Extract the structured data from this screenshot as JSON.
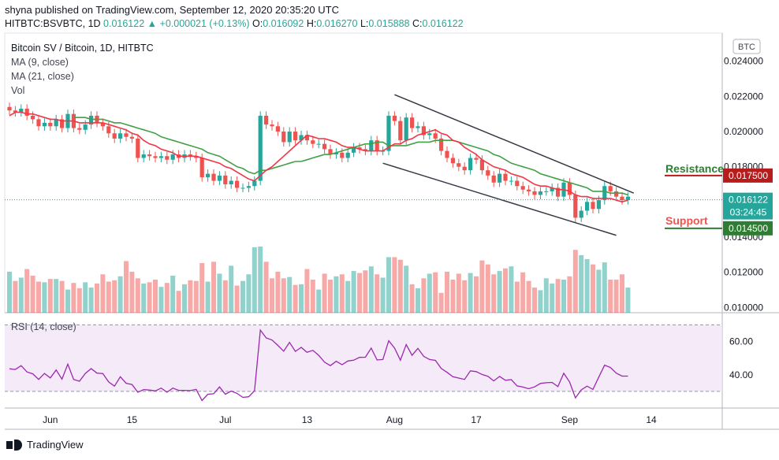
{
  "header": {
    "publisher_line": "shyna published on TradingView.com, September 12, 2020 20:35:20 UTC",
    "symbol": "HITBTC:BSVBTC, 1D",
    "last": "0.016122",
    "arrow": "▲",
    "change": "+0.000021 (+0.13%)",
    "o_label": "O:",
    "o": "0.016092",
    "h_label": "H:",
    "h": "0.016270",
    "l_label": "L:",
    "l": "0.015888",
    "c_label": "C:",
    "c": "0.016122"
  },
  "legend": {
    "title": "Bitcoin SV / Bitcoin, 1D, HITBTC",
    "ma9": "MA (9, close)",
    "ma21": "MA (21, close)",
    "vol": "Vol"
  },
  "currency_badge": "BTC",
  "rsi_label": "RSI (14, close)",
  "footer": {
    "brand": "TradingView"
  },
  "colors": {
    "up": "#26a69a",
    "down": "#ef5350",
    "ma9": "#f23645",
    "ma21": "#43a047",
    "channel": "#363a45",
    "rsi_line": "#9c27b0",
    "rsi_bg": "#f3e5f5",
    "resistance": "#b71c1c",
    "support": "#2e7d32",
    "price_tag": "#26a69a"
  },
  "chart_data": {
    "type": "candlestick",
    "price_axis": {
      "ylim": [
        0.0097,
        0.0256
      ],
      "ticks": [
        "0.024000",
        "0.022000",
        "0.020000",
        "0.018000",
        "0.016000",
        "0.014000",
        "0.012000",
        "0.010000"
      ],
      "tick_values": [
        0.024,
        0.022,
        0.02,
        0.018,
        0.016,
        0.014,
        0.012,
        0.01
      ]
    },
    "x_axis": {
      "ticks": [
        "Jun",
        "15",
        "Jul",
        "13",
        "Aug",
        "17",
        "Sep",
        "14"
      ],
      "tick_index": [
        7,
        21,
        37,
        51,
        66,
        80,
        96,
        110
      ]
    },
    "current_price": {
      "value": 0.016122,
      "label": "0.016122",
      "countdown": "03:24:45"
    },
    "resistance": {
      "label": "Resistance",
      "value": 0.0175,
      "value_label": "0.017500"
    },
    "support": {
      "label": "Support",
      "value": 0.0145,
      "value_label": "0.014500"
    },
    "channel": {
      "upper": [
        [
          66,
          0.0221
        ],
        [
          107,
          0.0165
        ]
      ],
      "lower": [
        [
          64,
          0.0182
        ],
        [
          104,
          0.0141
        ]
      ]
    },
    "closes": [
      0.0212,
      0.0211,
      0.0213,
      0.0209,
      0.0207,
      0.0203,
      0.0205,
      0.0203,
      0.0207,
      0.0202,
      0.021,
      0.0202,
      0.0201,
      0.0204,
      0.0209,
      0.0205,
      0.0203,
      0.0199,
      0.0196,
      0.0199,
      0.0197,
      0.0196,
      0.0185,
      0.0187,
      0.0186,
      0.0185,
      0.0186,
      0.0184,
      0.0187,
      0.0185,
      0.0187,
      0.0186,
      0.0185,
      0.0174,
      0.0176,
      0.0172,
      0.0175,
      0.017,
      0.0172,
      0.0168,
      0.0168,
      0.0169,
      0.0172,
      0.0209,
      0.0204,
      0.0203,
      0.02,
      0.0194,
      0.02,
      0.0195,
      0.0198,
      0.0195,
      0.0193,
      0.0193,
      0.019,
      0.0187,
      0.0188,
      0.0185,
      0.0188,
      0.0191,
      0.019,
      0.0189,
      0.0195,
      0.0189,
      0.0189,
      0.0209,
      0.0206,
      0.0195,
      0.0208,
      0.0202,
      0.0203,
      0.0198,
      0.0199,
      0.0196,
      0.0189,
      0.0185,
      0.0182,
      0.018,
      0.0178,
      0.0185,
      0.0184,
      0.0178,
      0.0175,
      0.0171,
      0.0176,
      0.0172,
      0.0172,
      0.0169,
      0.0167,
      0.0166,
      0.0164,
      0.0166,
      0.0166,
      0.0168,
      0.0163,
      0.0171,
      0.0164,
      0.0151,
      0.0155,
      0.016,
      0.0156,
      0.0161,
      0.0169,
      0.0166,
      0.0163,
      0.0161,
      0.0163
    ],
    "ma9": [
      0.0209,
      0.0211,
      0.0211,
      0.021,
      0.021,
      0.0209,
      0.0208,
      0.0207,
      0.0207,
      0.0206,
      0.0206,
      0.0206,
      0.0205,
      0.0205,
      0.0205,
      0.0205,
      0.0205,
      0.0204,
      0.0203,
      0.0202,
      0.0201,
      0.0199,
      0.0198,
      0.0195,
      0.0193,
      0.0192,
      0.019,
      0.0189,
      0.0188,
      0.0186,
      0.0186,
      0.0186,
      0.0186,
      0.0185,
      0.0184,
      0.0183,
      0.0182,
      0.018,
      0.0179,
      0.0177,
      0.0175,
      0.0173,
      0.0172,
      0.0175,
      0.0178,
      0.018,
      0.0183,
      0.0186,
      0.0189,
      0.0192,
      0.0195,
      0.0198,
      0.0197,
      0.0196,
      0.0196,
      0.0195,
      0.0194,
      0.0192,
      0.0191,
      0.0191,
      0.019,
      0.0189,
      0.0189,
      0.0189,
      0.0189,
      0.0191,
      0.0193,
      0.0193,
      0.0195,
      0.0196,
      0.0198,
      0.0199,
      0.02,
      0.0201,
      0.0199,
      0.0198,
      0.0195,
      0.0194,
      0.0191,
      0.0189,
      0.0187,
      0.0184,
      0.0182,
      0.018,
      0.0179,
      0.0178,
      0.0176,
      0.0175,
      0.0174,
      0.0172,
      0.017,
      0.0169,
      0.0169,
      0.0168,
      0.0167,
      0.0167,
      0.0166,
      0.0164,
      0.0163,
      0.0163,
      0.0162,
      0.0162,
      0.0162,
      0.0162,
      0.0161,
      0.016,
      0.0161
    ],
    "ma21": [
      null,
      null,
      null,
      null,
      null,
      null,
      null,
      null,
      null,
      null,
      null,
      0.0208,
      0.0208,
      0.0208,
      0.0207,
      0.0207,
      0.0207,
      0.0206,
      0.0205,
      0.0205,
      0.0204,
      0.0203,
      0.0202,
      0.0201,
      0.02,
      0.0199,
      0.0197,
      0.0196,
      0.0195,
      0.0194,
      0.0193,
      0.0192,
      0.0191,
      0.019,
      0.0188,
      0.0187,
      0.0186,
      0.0184,
      0.0182,
      0.018,
      0.0179,
      0.0177,
      0.0176,
      0.0178,
      0.0178,
      0.0179,
      0.018,
      0.0181,
      0.0182,
      0.0183,
      0.0183,
      0.0184,
      0.0185,
      0.0186,
      0.0187,
      0.0187,
      0.0188,
      0.0189,
      0.019,
      0.0191,
      0.0192,
      0.0193,
      0.0193,
      0.0194,
      0.0194,
      0.0192,
      0.0192,
      0.0192,
      0.0192,
      0.0193,
      0.0194,
      0.0194,
      0.0194,
      0.0195,
      0.0195,
      0.0195,
      0.0195,
      0.0194,
      0.0193,
      0.0192,
      0.0191,
      0.019,
      0.0189,
      0.0187,
      0.0186,
      0.0184,
      0.0182,
      0.0181,
      0.018,
      0.0179,
      0.0178,
      0.0176,
      0.0175,
      0.0174,
      0.0173,
      0.0172,
      0.0171,
      0.017,
      0.0169,
      0.0168,
      0.0166,
      0.0166,
      0.0166,
      0.0165,
      0.0165,
      0.0165,
      0.0164
    ],
    "volume": [
      0.62,
      0.48,
      0.53,
      0.66,
      0.56,
      0.47,
      0.46,
      0.51,
      0.51,
      0.48,
      0.35,
      0.45,
      0.37,
      0.46,
      0.38,
      0.44,
      0.58,
      0.47,
      0.49,
      0.55,
      0.78,
      0.62,
      0.52,
      0.44,
      0.46,
      0.5,
      0.39,
      0.45,
      0.56,
      0.33,
      0.43,
      0.49,
      0.48,
      0.75,
      0.47,
      0.77,
      0.59,
      0.49,
      0.71,
      0.41,
      0.48,
      0.58,
      0.99,
      1.0,
      0.77,
      0.52,
      0.62,
      0.52,
      0.54,
      0.42,
      0.43,
      0.66,
      0.5,
      0.35,
      0.59,
      0.5,
      0.55,
      0.58,
      0.48,
      0.63,
      0.6,
      0.64,
      0.7,
      0.58,
      0.53,
      0.84,
      0.84,
      0.8,
      0.71,
      0.43,
      0.37,
      0.52,
      0.59,
      0.61,
      0.3,
      0.62,
      0.5,
      0.59,
      0.49,
      0.6,
      0.55,
      0.79,
      0.73,
      0.58,
      0.63,
      0.67,
      0.7,
      0.47,
      0.61,
      0.48,
      0.38,
      0.34,
      0.52,
      0.44,
      0.51,
      0.5,
      0.55,
      0.95,
      0.87,
      0.81,
      0.73,
      0.65,
      0.76,
      0.5,
      0.5,
      0.58,
      0.38
    ],
    "rsi": {
      "label": "RSI (14, close)",
      "ylim": [
        20,
        75
      ],
      "ticks": [
        "60.00",
        "40.00"
      ],
      "tick_values": [
        60,
        40
      ],
      "band": [
        30,
        70
      ],
      "values": [
        43.6,
        43.2,
        45.5,
        41.7,
        40.6,
        37.2,
        40.8,
        38.1,
        42.9,
        37.4,
        46.4,
        37.2,
        36.1,
        40.8,
        43.7,
        41.0,
        40.7,
        35.7,
        33.2,
        38.8,
        34.9,
        34.2,
        29.5,
        31.1,
        30.8,
        30.3,
        32.0,
        29.5,
        32.0,
        30.6,
        30.6,
        30.5,
        31.2,
        24.5,
        28.3,
        28.6,
        32.7,
        28.3,
        30.2,
        28.8,
        26.4,
        26.8,
        30.4,
        66.9,
        62.2,
        60.9,
        57.7,
        54.2,
        59.5,
        54.1,
        56.5,
        53.5,
        54.7,
        51.7,
        47.6,
        45.5,
        48.1,
        46.1,
        48.3,
        48.8,
        50.5,
        50.6,
        56.1,
        48.9,
        49.2,
        60.5,
        56.1,
        48.8,
        58.2,
        51.7,
        55.9,
        51.1,
        49.2,
        48.7,
        43.8,
        41.5,
        38.8,
        38.0,
        37.2,
        42.4,
        41.9,
        40.2,
        39.1,
        36.3,
        39.0,
        36.7,
        37.1,
        33.3,
        32.6,
        31.6,
        32.7,
        34.8,
        35.2,
        35.4,
        32.9,
        40.9,
        35.7,
        26.1,
        30.9,
        33.2,
        31.2,
        38.6,
        45.8,
        44.4,
        41.0,
        39.2,
        39.2
      ]
    }
  }
}
